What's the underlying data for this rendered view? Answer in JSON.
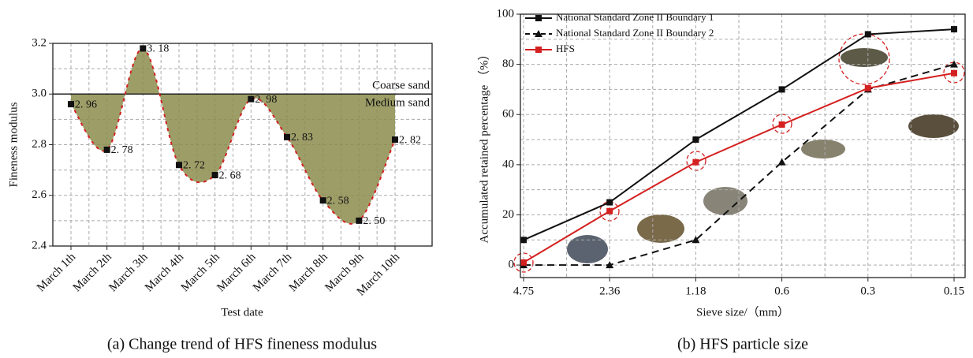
{
  "chart_data": [
    {
      "type": "area",
      "caption": "(a) Change trend of HFS fineness modulus",
      "x_label": "Test date",
      "y_label": "Fineness modulus",
      "categories": [
        "March 1th",
        "March 2th",
        "March 3th",
        "March 4th",
        "March 5th",
        "March 6th",
        "March 7th",
        "March 8th",
        "March 9th",
        "March 10th"
      ],
      "values": [
        2.96,
        2.78,
        3.18,
        2.72,
        2.68,
        2.98,
        2.83,
        2.58,
        2.5,
        2.82
      ],
      "value_labels": [
        "2. 96",
        "2. 78",
        "3. 18",
        "2. 72",
        "2. 68",
        "2. 98",
        "2. 83",
        "2. 58",
        "2. 50",
        "2. 82"
      ],
      "color": "#8c8c4e",
      "line_color": "#d42020",
      "marker_color": "#111111",
      "ylim": [
        2.4,
        3.2
      ],
      "yticks": [
        2.4,
        2.6,
        2.8,
        {
          "value": 3,
          "label": "3.0"
        },
        3.2
      ],
      "grid": true,
      "reference_line": {
        "value": 3,
        "label_above": "Coarse sand",
        "label_below": "Medium sand"
      }
    },
    {
      "type": "line",
      "caption": "(b) HFS particle size",
      "x_label": "Sieve size/（mm）",
      "y_label": "Accumulated retained percentage （%）",
      "categories": [
        "4.75",
        "2.36",
        "1.18",
        "0.6",
        "0.3",
        "0.15"
      ],
      "series": [
        {
          "name": "National Standard Zone II Boundary 1",
          "color": "#111111",
          "marker": "square",
          "dash": false,
          "values": [
            10,
            25,
            50,
            70,
            92,
            94
          ]
        },
        {
          "name": "National Standard Zone II Boundary 2",
          "color": "#111111",
          "marker": "triangle",
          "dash": true,
          "values": [
            0,
            0,
            10,
            41,
            70,
            80
          ]
        },
        {
          "name": "HFS",
          "color": "#d42020",
          "marker": "square",
          "dash": false,
          "values": [
            1,
            21.5,
            41,
            56,
            70.5,
            76.5
          ]
        }
      ],
      "ylim": [
        -5,
        100
      ],
      "yticks": [
        0,
        20,
        40,
        60,
        80,
        100
      ],
      "grid": true,
      "legend": "upper-left"
    }
  ]
}
